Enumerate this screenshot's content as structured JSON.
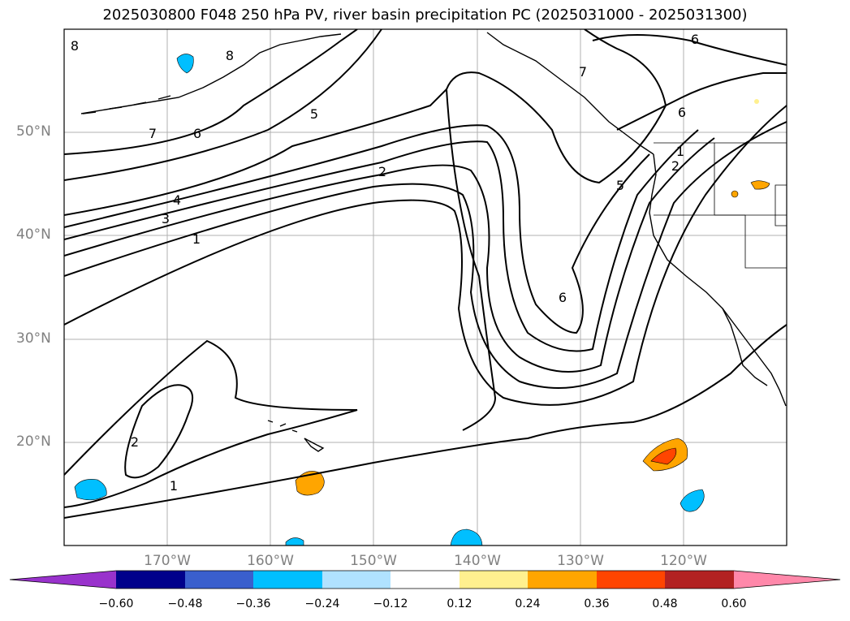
{
  "title": "2025030800 F048 250 hPa PV, river basin precipitation PC (2025031000 - 2025031300)",
  "map": {
    "lat_labels": [
      "50°N",
      "40°N",
      "30°N",
      "20°N"
    ],
    "lon_labels": [
      "170°W",
      "160°W",
      "150°W",
      "140°W",
      "130°W",
      "120°W"
    ],
    "contour_labels": [
      "8",
      "8",
      "7",
      "6",
      "5",
      "6",
      "7",
      "6",
      "2",
      "4",
      "3",
      "1",
      "2",
      "5",
      "1",
      "6",
      "2",
      "1"
    ]
  },
  "colorbar": {
    "tick_labels": [
      "−0.60",
      "−0.48",
      "−0.36",
      "−0.24",
      "−0.12",
      "0.12",
      "0.24",
      "0.36",
      "0.48",
      "0.60"
    ],
    "colors": [
      "#9932cc",
      "#00008b",
      "#3a5fcd",
      "#00bfff",
      "#b0e2ff",
      "#ffffff",
      "#fff08f",
      "#ffa500",
      "#ff4500",
      "#b22222",
      "#ff88aa"
    ]
  }
}
